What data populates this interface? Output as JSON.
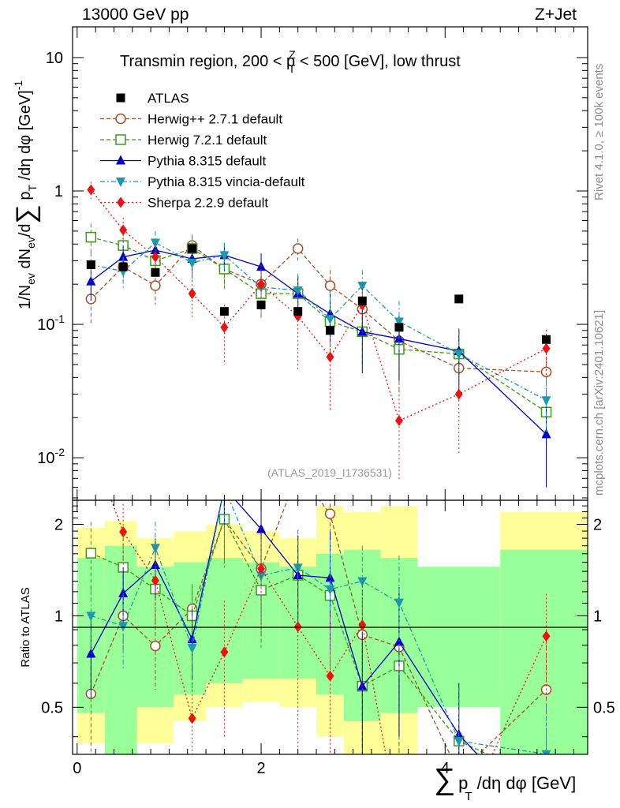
{
  "header": {
    "left": "13000 GeV pp",
    "right": "Z+Jet"
  },
  "side_text": {
    "rivet": "Rivet 4.1.0, ≥ 100k events",
    "mcplots": "mcplots.cern.ch [arXiv:2401.10621]"
  },
  "chart_data": {
    "type": "scatter",
    "title": "Transmin region, 200 < pT^Z < 500 [GeV], low thrust",
    "title_parts": {
      "pre": "Transmin region, 200 < p",
      "sup": "Z",
      "sub": "T",
      "post": " < 500 [GeV], low thrust"
    },
    "analysis": "(ATLAS_2019_I1736531)",
    "xlabel": "∑ pT /dη dφ [GeV]",
    "xlabel_parts": {
      "sum": "∑",
      "p": "p",
      "sub": "T",
      "rest": " /dη dφ [GeV]"
    },
    "ylabel": "1/Nev dNev/d∑ pT /dη dφ [GeV]^-1",
    "ratio_ylabel": "Ratio to ATLAS",
    "x_ticks": [
      "0",
      "2",
      "4"
    ],
    "main_y_ticks": [
      "10",
      "1",
      "10",
      "10"
    ],
    "main_y_ticks_exp": [
      "",
      "",
      "-1",
      "-2"
    ],
    "ratio_y_ticks": [
      "2",
      "1",
      "0.5"
    ],
    "xlim": [
      -0.05,
      5.55
    ],
    "ylim": [
      0.0048,
      17
    ],
    "ratio_ylim": [
      0.35,
      2.4
    ],
    "x": [
      0.15,
      0.5,
      0.85,
      1.25,
      1.6,
      2.0,
      2.4,
      2.75,
      3.1,
      3.5,
      4.15,
      5.1
    ],
    "band_edges": [
      0.0,
      0.3,
      0.65,
      1.05,
      1.4,
      1.8,
      2.2,
      2.6,
      2.9,
      3.3,
      3.7,
      4.6,
      5.55
    ],
    "band_inner": [
      [
        0.48,
        1.55
      ],
      [
        0.35,
        1.7
      ],
      [
        0.5,
        1.45
      ],
      [
        0.55,
        1.5
      ],
      [
        0.6,
        1.55
      ],
      [
        0.62,
        1.5
      ],
      [
        0.62,
        1.45
      ],
      [
        0.55,
        1.6
      ],
      [
        0.45,
        1.65
      ],
      [
        0.48,
        1.55
      ],
      [
        0.5,
        1.45
      ],
      [
        0.35,
        1.65
      ]
    ],
    "band_outer": [
      [
        0.38,
        1.95
      ],
      [
        0.35,
        2.05
      ],
      [
        0.38,
        1.8
      ],
      [
        0.45,
        1.9
      ],
      [
        0.5,
        2.0
      ],
      [
        0.52,
        1.9
      ],
      [
        0.5,
        1.8
      ],
      [
        0.4,
        2.3
      ],
      [
        0.35,
        2.2
      ],
      [
        0.35,
        2.3
      ],
      [
        0.8,
        1.35
      ],
      [
        0.6,
        2.2
      ]
    ],
    "atlas": {
      "name": "ATLAS",
      "color": "#000000",
      "values": [
        0.28,
        0.27,
        0.245,
        0.37,
        0.125,
        0.14,
        0.125,
        0.09,
        0.15,
        0.095,
        0.155,
        0.077
      ]
    },
    "series": [
      {
        "name": "Herwig++ 2.7.1 default",
        "color": "#a0522d",
        "marker": "circle",
        "dash": "5,3",
        "values": [
          0.155,
          0.27,
          0.195,
          0.39,
          0.26,
          0.2,
          0.37,
          0.195,
          0.13,
          0.075,
          0.047,
          0.044
        ],
        "err": [
          0.055,
          0.06,
          0.055,
          0.08,
          0.07,
          0.06,
          0.07,
          0.06,
          0.05,
          0.04,
          0.02,
          0.02
        ]
      },
      {
        "name": "Herwig 7.2.1 default",
        "color": "#3a9a1a",
        "marker": "square",
        "dash": "5,3",
        "values": [
          0.45,
          0.39,
          0.3,
          0.37,
          0.26,
          0.17,
          0.17,
          0.105,
          0.088,
          0.065,
          0.06,
          0.022
        ],
        "err": [
          0.12,
          0.1,
          0.08,
          0.09,
          0.08,
          0.06,
          0.06,
          0.05,
          0.04,
          0.035,
          0.03,
          0.01
        ]
      },
      {
        "name": "Pythia 8.315 default",
        "color": "#0000cc",
        "marker": "triangle-up",
        "dash": "",
        "values": [
          0.21,
          0.32,
          0.36,
          0.31,
          0.33,
          0.27,
          0.17,
          0.12,
          0.088,
          0.078,
          0.063,
          0.015
        ],
        "err": [
          0.06,
          0.07,
          0.08,
          0.08,
          0.08,
          0.07,
          0.06,
          0.05,
          0.045,
          0.04,
          0.03,
          0.009
        ]
      },
      {
        "name": "Pythia 8.315 vincia-default",
        "color": "#1a9ab0",
        "marker": "triangle-down",
        "dash": "6,3,2,3",
        "values": [
          0.28,
          0.25,
          0.41,
          0.29,
          0.33,
          0.19,
          0.18,
          0.11,
          0.195,
          0.105,
          0.06,
          0.027
        ],
        "err": [
          0.07,
          0.07,
          0.09,
          0.08,
          0.08,
          0.06,
          0.06,
          0.05,
          0.06,
          0.045,
          0.03,
          0.012
        ]
      },
      {
        "name": "Sherpa 2.2.9 default",
        "color": "#ee1111",
        "marker": "diamond",
        "dash": "2,3",
        "values": [
          1.02,
          0.51,
          0.32,
          0.17,
          0.095,
          0.2,
          0.115,
          0.057,
          0.14,
          0.019,
          0.03,
          0.066
        ],
        "err": [
          0.15,
          0.12,
          0.09,
          0.06,
          0.045,
          0.08,
          0.07,
          0.035,
          0.06,
          0.015,
          0.02,
          0.025
        ]
      }
    ]
  }
}
